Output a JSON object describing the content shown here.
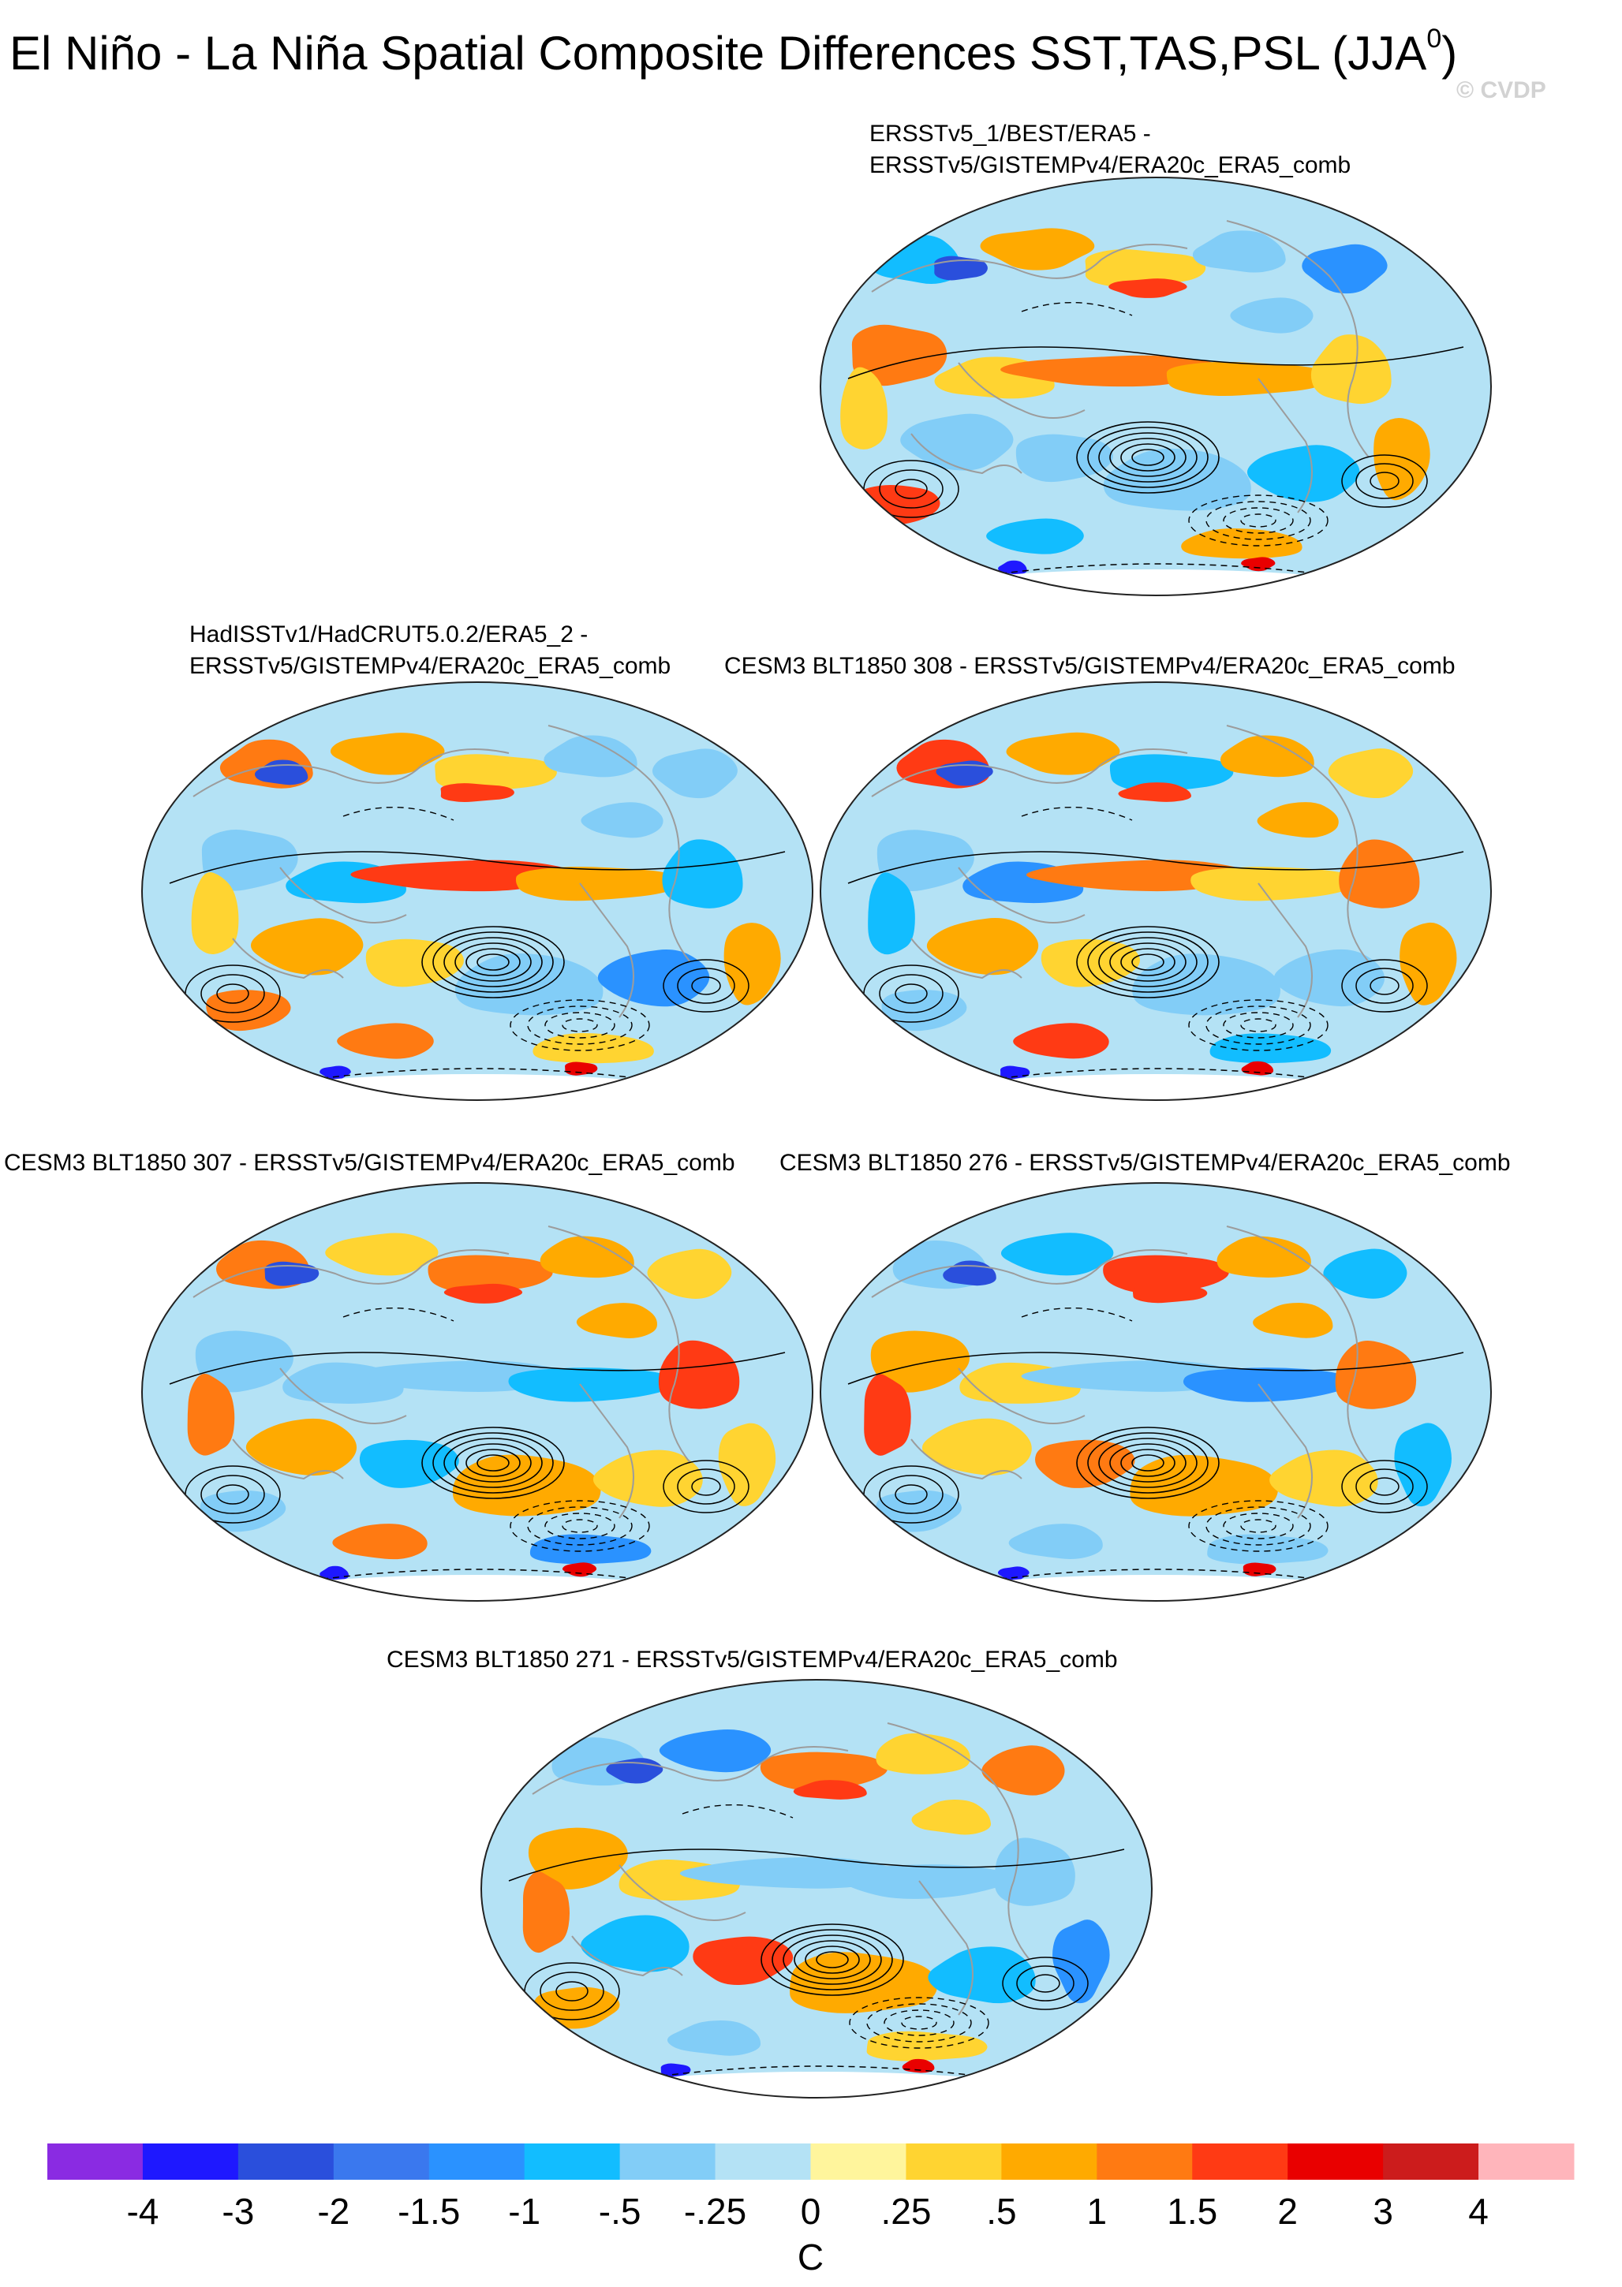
{
  "figure": {
    "title_main": "El Niño - La Niña Spatial Composite Differences SST,TAS,PSL (JJA",
    "title_sup": "0",
    "title_close": ")",
    "watermark": "© CVDP"
  },
  "panels": [
    {
      "id": "p1",
      "label_lines": [
        "ERSSTv5_1/BEST/ERA5 -",
        "ERSSTv5/GISTEMPv4/ERA20c_ERA5_comb"
      ]
    },
    {
      "id": "p2",
      "label_lines": [
        "HadISSTv1/HadCRUT5.0.2/ERA5_2 -",
        "ERSSTv5/GISTEMPv4/ERA20c_ERA5_comb"
      ]
    },
    {
      "id": "p3",
      "label_lines": [
        "CESM3 BLT1850 308 - ERSSTv5/GISTEMPv4/ERA20c_ERA5_comb"
      ]
    },
    {
      "id": "p4",
      "label_lines": [
        "CESM3 BLT1850 307 - ERSSTv5/GISTEMPv4/ERA20c_ERA5_comb"
      ]
    },
    {
      "id": "p5",
      "label_lines": [
        "CESM3 BLT1850 276 - ERSSTv5/GISTEMPv4/ERA20c_ERA5_comb"
      ]
    },
    {
      "id": "p6",
      "label_lines": [
        "CESM3 BLT1850 271 - ERSSTv5/GISTEMPv4/ERA20c_ERA5_comb"
      ]
    }
  ],
  "chart_data": {
    "type": "heatmap",
    "projection": "Robinson (Pacific-centered)",
    "variables": [
      "SST",
      "TAS",
      "PSL"
    ],
    "season": "JJA0",
    "contours": "PSL composite difference (solid positive, dashed negative)",
    "colorbar": {
      "unit": "C",
      "tick_labels": [
        "-4",
        "-3",
        "-2",
        "-1.5",
        "-1",
        "-.5",
        "-.25",
        "0",
        ".25",
        ".5",
        "1",
        "1.5",
        "2",
        "3",
        "4"
      ],
      "levels": [
        -4,
        -3,
        -2,
        -1.5,
        -1,
        -0.5,
        -0.25,
        0,
        0.25,
        0.5,
        1,
        1.5,
        2,
        3,
        4
      ],
      "colors": [
        "#8a2be2",
        "#1e18ff",
        "#2a4fdc",
        "#3a78ee",
        "#2a92ff",
        "#12bdff",
        "#82cdf7",
        "#b4e2f5",
        "#fff59c",
        "#ffd431",
        "#ffaa00",
        "#ff7a12",
        "#ff3a14",
        "#e90000",
        "#cc1c1c",
        "#ffb5bb"
      ]
    }
  }
}
